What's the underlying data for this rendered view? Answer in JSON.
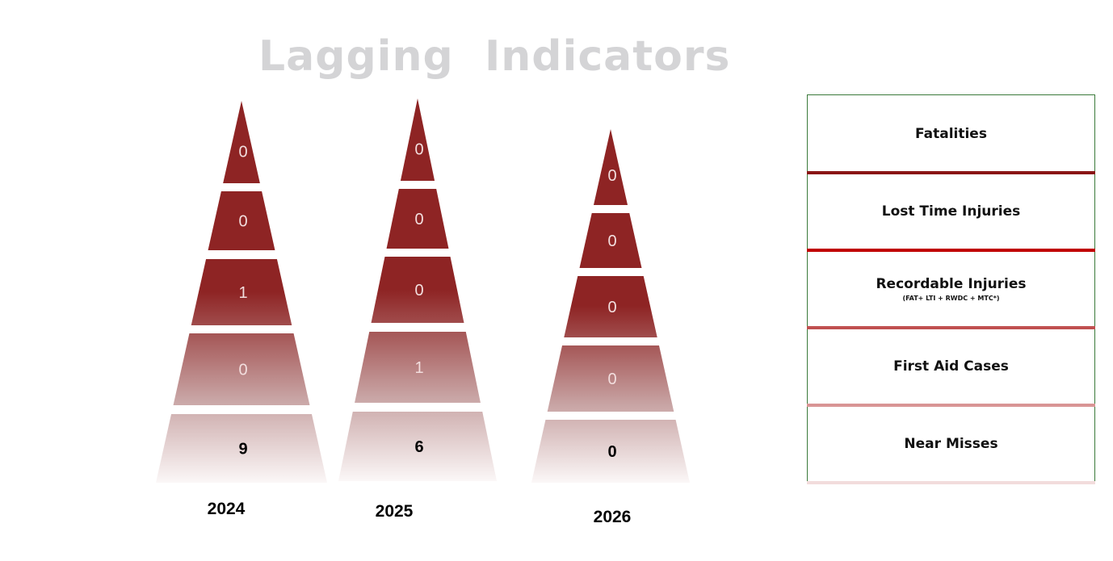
{
  "title": "Lagging  Indicators",
  "chart_data": {
    "type": "pyramid",
    "levels": [
      "Fatalities",
      "Lost Time Injuries",
      "Recordable Injuries",
      "First Aid Cases",
      "Near Misses"
    ],
    "series": [
      {
        "name": "2024",
        "values": [
          0,
          0,
          1,
          0,
          9
        ]
      },
      {
        "name": "2025",
        "values": [
          0,
          0,
          0,
          1,
          6
        ]
      },
      {
        "name": "2026",
        "values": [
          0,
          0,
          0,
          0,
          0
        ]
      }
    ]
  },
  "legend": {
    "rows": [
      {
        "label": "Fatalities",
        "sub": "",
        "color": "#8a1515"
      },
      {
        "label": "Lost Time Injuries",
        "sub": "",
        "color": "#c00000"
      },
      {
        "label": "Recordable Injuries",
        "sub": "(FAT+ LTI + RWDC + MTC*)",
        "color": "#c05050"
      },
      {
        "label": "First Aid Cases",
        "sub": "",
        "color": "#d99595"
      },
      {
        "label": "Near Misses",
        "sub": "",
        "color": "#f2dcdc"
      }
    ],
    "border_color": "#3a7a3a"
  },
  "colors": {
    "pyramid_top": "#8e2424",
    "pyramid_mid": "#c8a4a4",
    "pyramid_bottom": "#fbf7f7"
  }
}
